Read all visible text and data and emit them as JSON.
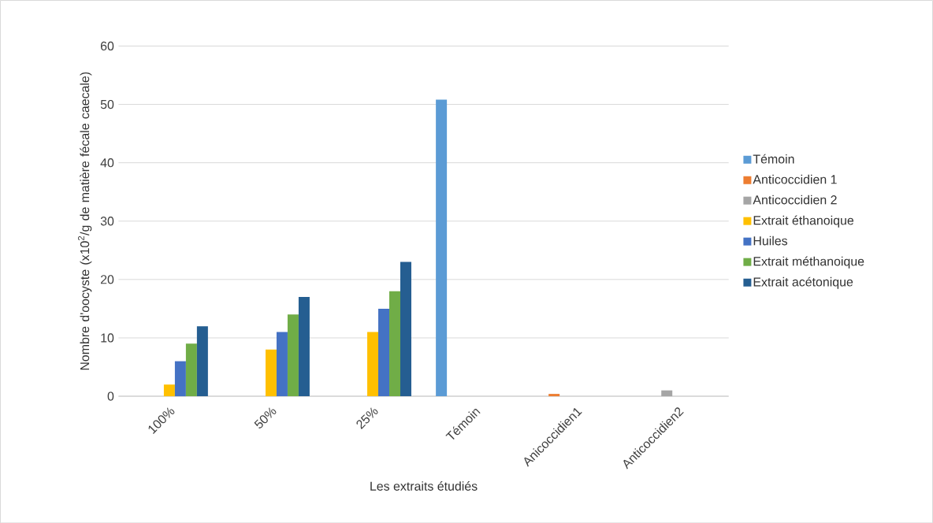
{
  "chart_data": {
    "type": "bar",
    "xlabel": "Les extraits étudiés",
    "ylabel": "Nombre d'oocyste (x10$^{2}$/g de matière fécale caecale)",
    "categories": [
      "100%",
      "50%",
      "25%",
      "Témoin",
      "Anicoccidien1",
      "Anticoccidien2"
    ],
    "series": [
      {
        "name": "Témoin",
        "color": "#5b9bd5",
        "values": [
          null,
          null,
          null,
          50.8,
          null,
          null
        ]
      },
      {
        "name": "Anticoccidien 1",
        "color": "#ed7d31",
        "values": [
          null,
          null,
          null,
          null,
          0.4,
          null
        ]
      },
      {
        "name": "Anticoccidien 2",
        "color": "#a5a5a5",
        "values": [
          null,
          null,
          null,
          null,
          null,
          1
        ]
      },
      {
        "name": "Extrait éthanoique",
        "color": "#ffc000",
        "values": [
          2,
          8,
          11,
          null,
          null,
          null
        ]
      },
      {
        "name": "Huiles",
        "color": "#4472c4",
        "values": [
          6,
          11,
          15,
          null,
          null,
          null
        ]
      },
      {
        "name": "Extrait méthanoique",
        "color": "#70ad47",
        "values": [
          9,
          14,
          18,
          null,
          null,
          null
        ]
      },
      {
        "name": "Extrait acétonique",
        "color": "#255e91",
        "values": [
          12,
          17,
          23,
          null,
          null,
          null
        ]
      }
    ],
    "ylim": [
      0,
      60
    ],
    "yticks": [
      0,
      10,
      20,
      30,
      40,
      50,
      60
    ],
    "grid": "y",
    "legend": "right"
  }
}
